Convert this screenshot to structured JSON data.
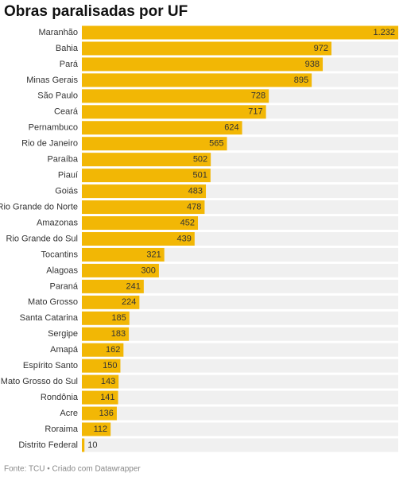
{
  "chart_data": {
    "type": "bar",
    "orientation": "horizontal",
    "title": "Obras paralisadas por UF",
    "categories": [
      "Maranhão",
      "Bahia",
      "Pará",
      "Minas Gerais",
      "São Paulo",
      "Ceará",
      "Pernambuco",
      "Rio de Janeiro",
      "Paraíba",
      "Piauí",
      "Goiás",
      "Rio Grande do Norte",
      "Amazonas",
      "Rio Grande do Sul",
      "Tocantins",
      "Alagoas",
      "Paraná",
      "Mato Grosso",
      "Santa Catarina",
      "Sergipe",
      "Amapá",
      "Espírito Santo",
      "Mato Grosso do Sul",
      "Rondônia",
      "Acre",
      "Roraima",
      "Distrito Federal"
    ],
    "values": [
      1232,
      972,
      938,
      895,
      728,
      717,
      624,
      565,
      502,
      501,
      483,
      478,
      452,
      439,
      321,
      300,
      241,
      224,
      185,
      183,
      162,
      150,
      143,
      141,
      136,
      112,
      10
    ],
    "value_labels": [
      "1.232",
      "972",
      "938",
      "895",
      "728",
      "717",
      "624",
      "565",
      "502",
      "501",
      "483",
      "478",
      "452",
      "439",
      "321",
      "300",
      "241",
      "224",
      "185",
      "183",
      "162",
      "150",
      "143",
      "141",
      "136",
      "112",
      "10"
    ],
    "color": "#f2b705",
    "source": "Fonte: TCU • Criado com Datawrapper"
  }
}
